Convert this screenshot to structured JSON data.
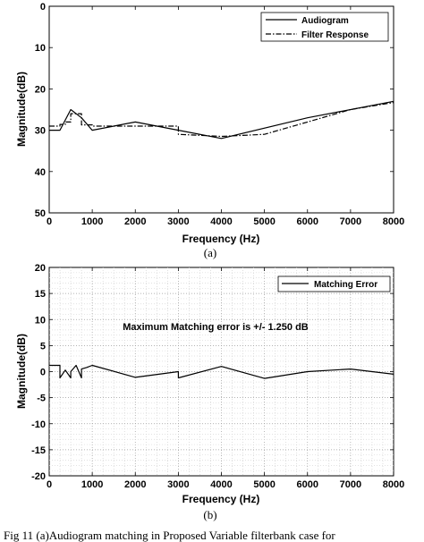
{
  "chart_data": [
    {
      "type": "line",
      "sublabel": "(a)",
      "xlabel": "Frequency (Hz)",
      "ylabel": "Magnitude(dB)",
      "xlim": [
        0,
        8000
      ],
      "ylim": [
        0,
        50
      ],
      "y_inverted": true,
      "xticks": [
        "0",
        "1000",
        "2000",
        "3000",
        "4000",
        "5000",
        "6000",
        "7000",
        "8000"
      ],
      "yticks": [
        "0",
        "10",
        "20",
        "30",
        "40",
        "50"
      ],
      "grid": false,
      "legend_position": "top-right",
      "series": [
        {
          "name": "Audiogram",
          "style": "solid",
          "x": [
            0,
            250,
            500,
            750,
            1000,
            2000,
            3000,
            4000,
            6000,
            8000
          ],
          "y": [
            30,
            30,
            25,
            27,
            30,
            28,
            30,
            32,
            27,
            23
          ]
        },
        {
          "name": "Filter Response",
          "style": "dash-dot",
          "x": [
            0,
            250,
            250,
            375,
            375,
            500,
            500,
            750,
            750,
            1000,
            1000,
            2000,
            3000,
            3000,
            4000,
            5000,
            6000,
            7000,
            8000
          ],
          "y": [
            29,
            29,
            28.6,
            28.6,
            28,
            28,
            26,
            26,
            28.7,
            28.7,
            29,
            29,
            29,
            31,
            31.5,
            31,
            28,
            25,
            23.3
          ]
        }
      ]
    },
    {
      "type": "line",
      "sublabel": "(b)",
      "xlabel": "Frequency (Hz)",
      "ylabel": "Magnitude(dB)",
      "xlim": [
        0,
        8000
      ],
      "ylim": [
        -20,
        20
      ],
      "xticks": [
        "0",
        "1000",
        "2000",
        "3000",
        "4000",
        "5000",
        "6000",
        "7000",
        "8000"
      ],
      "yticks": [
        "20",
        "15",
        "10",
        "5",
        "0",
        "-5",
        "-10",
        "-15",
        "-20"
      ],
      "grid": true,
      "legend_position": "top-right",
      "annotation": "Maximum Matching error is +/- 1.250 dB",
      "series": [
        {
          "name": "Matching Error",
          "style": "solid",
          "x": [
            0,
            250,
            250,
            375,
            500,
            500,
            625,
            750,
            750,
            875,
            1000,
            2000,
            3000,
            3000,
            4000,
            5000,
            6000,
            7000,
            8000
          ],
          "y": [
            1.2,
            1.2,
            -1.2,
            0.3,
            -1.2,
            0,
            1.2,
            -1.2,
            0.5,
            0.8,
            1.2,
            -1.1,
            0,
            -1.2,
            1.0,
            -1.3,
            0,
            0.5,
            -0.5
          ]
        }
      ]
    }
  ],
  "caption": "Fig 11 (a)Audiogram matching in Proposed Variable filterbank case for"
}
